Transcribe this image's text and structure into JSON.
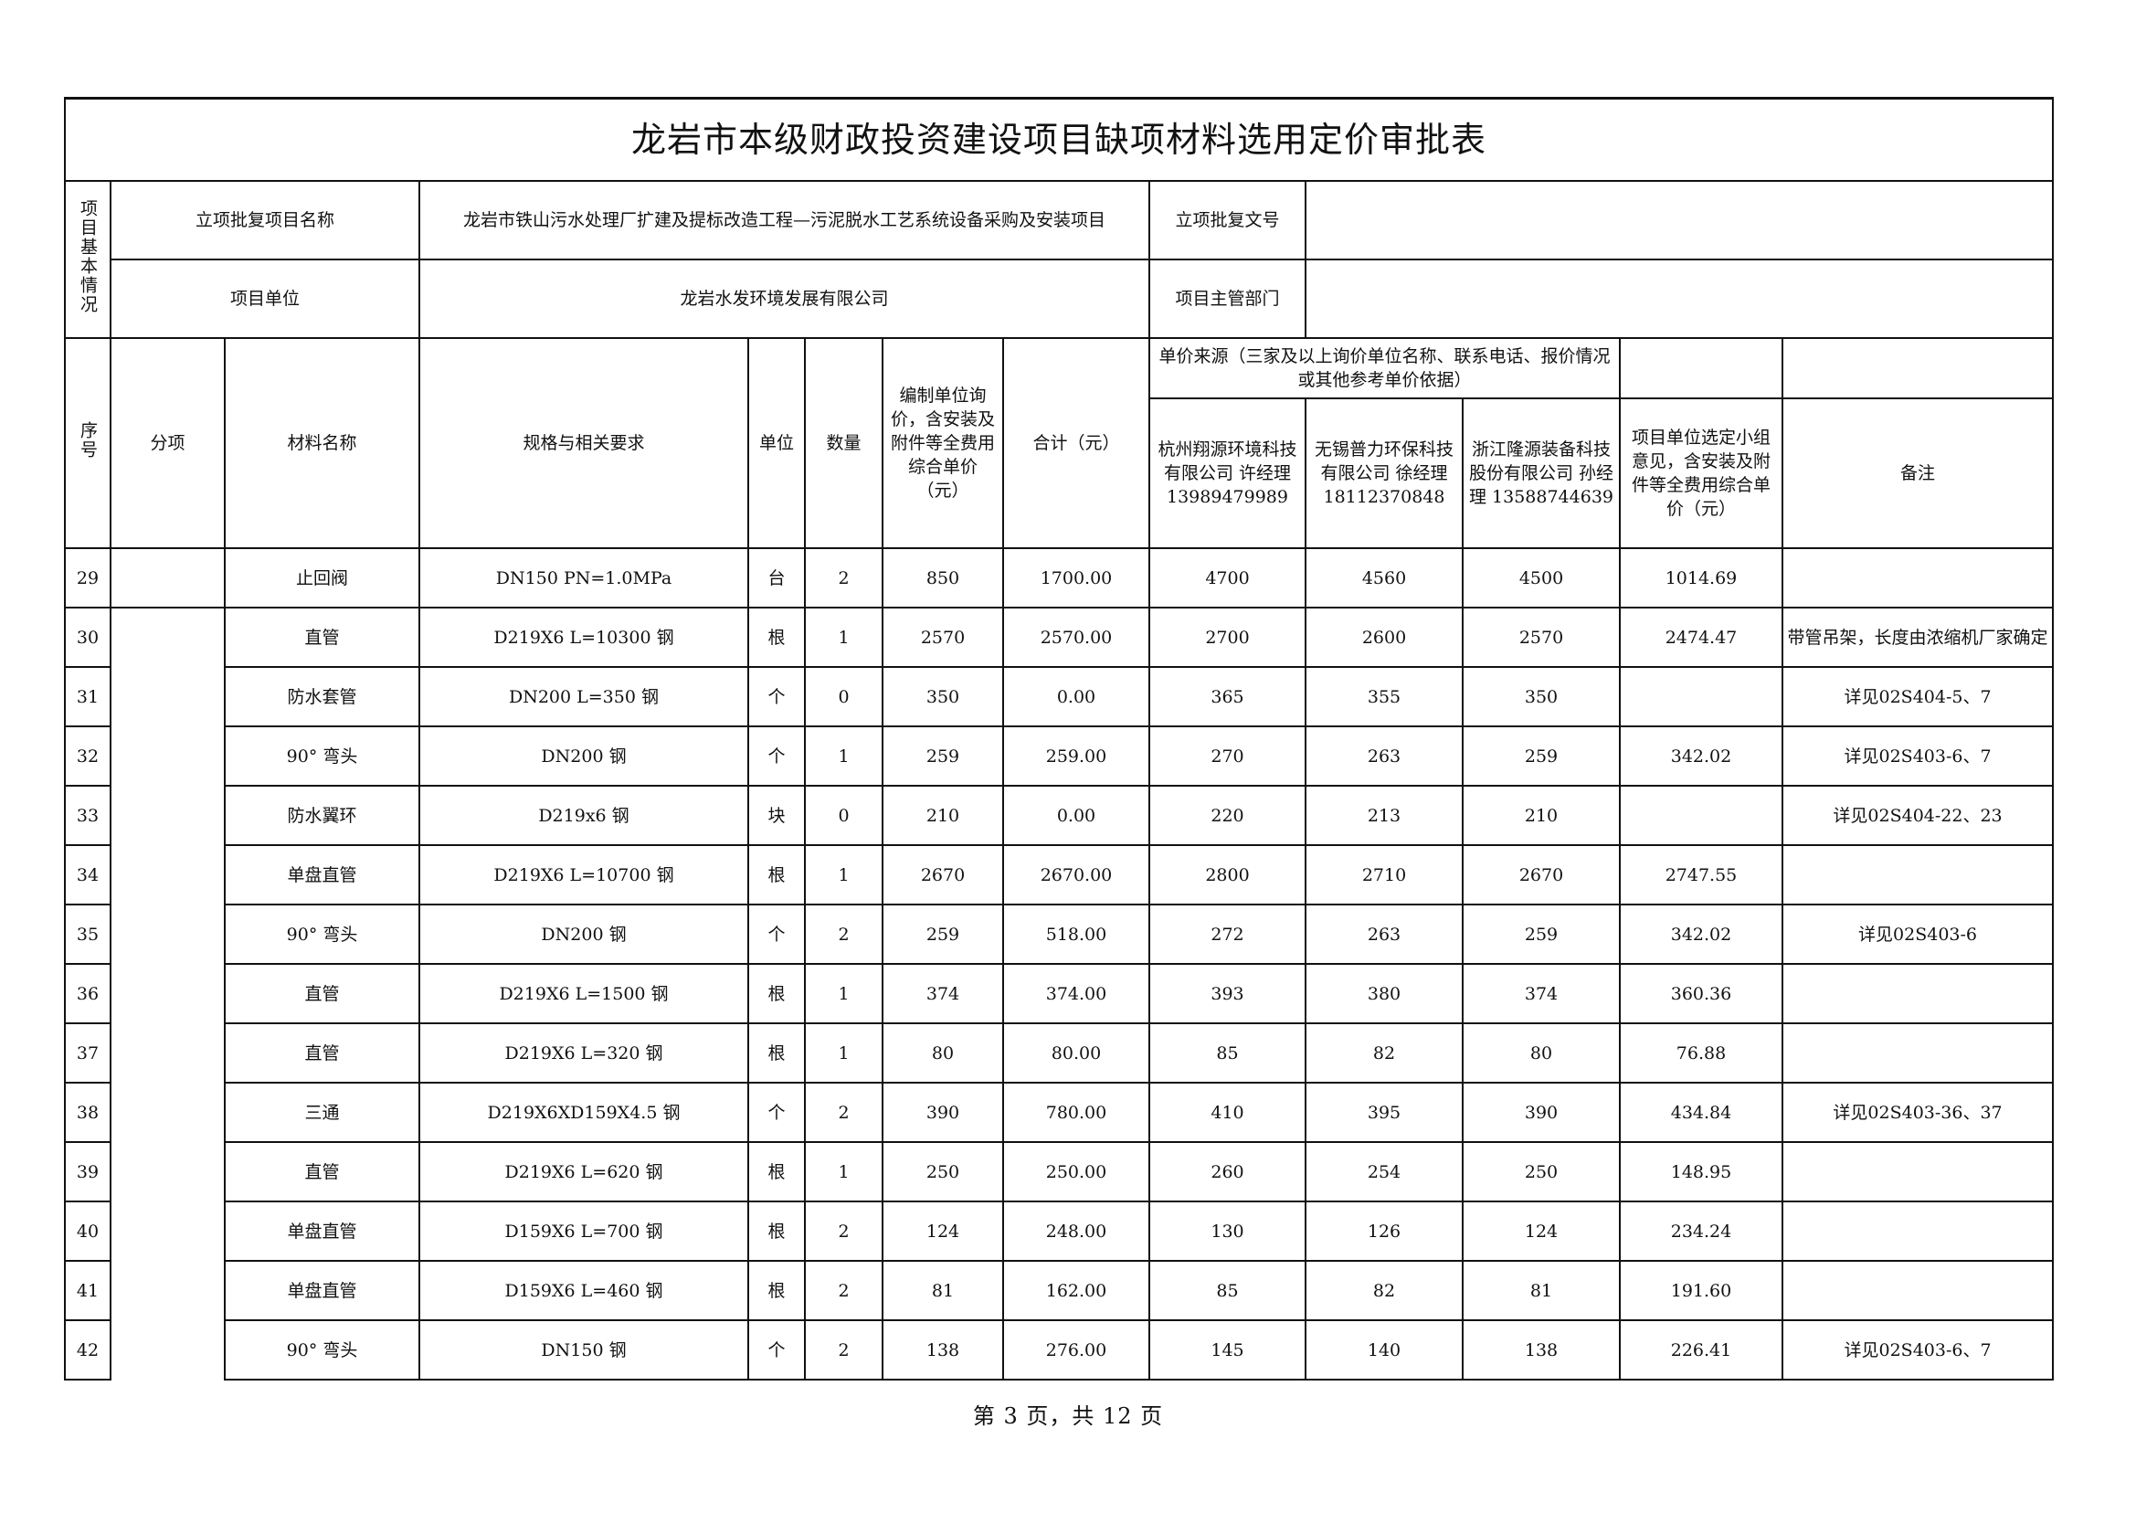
{
  "title": "龙岩市本级财政投资建设项目缺项材料选用定价审批表",
  "basic": {
    "section_label": "项目基本情况",
    "project_name_label": "立项批复项目名称",
    "project_name": "龙岩市铁山污水处理厂扩建及提标改造工程—污泥脱水工艺系统设备采购及安装项目",
    "approval_no_label": "立项批复文号",
    "approval_no": "",
    "unit_label": "项目单位",
    "unit": "龙岩水发环境发展有限公司",
    "dept_label": "项目主管部门",
    "dept": ""
  },
  "headers": {
    "seq": "序号",
    "sub_item": "分项",
    "material": "材料名称",
    "spec": "规格与相关要求",
    "unit": "单位",
    "qty": "数量",
    "compiled_price": "编制单位询价，含安装及附件等全费用综合单价（元）",
    "total": "合计（元）",
    "price_source": "单价来源（三家及以上询价单位名称、联系电话、报价情况或其他参考单价依据）",
    "vendor1": "杭州翔源环境科技有限公司 许经理 13989479989",
    "vendor2": "无锡普力环保科技有限公司 徐经理 18112370848",
    "vendor3": "浙江隆源装备科技股份有限公司 孙经理 13588744639",
    "selected_price": "项目单位选定小组意见，含安装及附件等全费用综合单价（元）",
    "remark": "备注"
  },
  "rows": [
    {
      "seq": "29",
      "material": "止回阀",
      "spec": "DN150 PN=1.0MPa",
      "unit": "台",
      "qty": "2",
      "price": "850",
      "total": "1700.00",
      "v1": "4700",
      "v2": "4560",
      "v3": "4500",
      "selected": "1014.69",
      "remark": ""
    },
    {
      "seq": "30",
      "material": "直管",
      "spec": "D219X6 L=10300 钢",
      "unit": "根",
      "qty": "1",
      "price": "2570",
      "total": "2570.00",
      "v1": "2700",
      "v2": "2600",
      "v3": "2570",
      "selected": "2474.47",
      "remark": "带管吊架，长度由浓缩机厂家确定"
    },
    {
      "seq": "31",
      "material": "防水套管",
      "spec": "DN200 L=350 钢",
      "unit": "个",
      "qty": "0",
      "price": "350",
      "total": "0.00",
      "v1": "365",
      "v2": "355",
      "v3": "350",
      "selected": "",
      "remark": "详见02S404-5、7"
    },
    {
      "seq": "32",
      "material": "90° 弯头",
      "spec": "DN200 钢",
      "unit": "个",
      "qty": "1",
      "price": "259",
      "total": "259.00",
      "v1": "270",
      "v2": "263",
      "v3": "259",
      "selected": "342.02",
      "remark": "详见02S403-6、7"
    },
    {
      "seq": "33",
      "material": "防水翼环",
      "spec": "D219x6 钢",
      "unit": "块",
      "qty": "0",
      "price": "210",
      "total": "0.00",
      "v1": "220",
      "v2": "213",
      "v3": "210",
      "selected": "",
      "remark": "详见02S404-22、23"
    },
    {
      "seq": "34",
      "material": "单盘直管",
      "spec": "D219X6 L=10700 钢",
      "unit": "根",
      "qty": "1",
      "price": "2670",
      "total": "2670.00",
      "v1": "2800",
      "v2": "2710",
      "v3": "2670",
      "selected": "2747.55",
      "remark": ""
    },
    {
      "seq": "35",
      "material": "90° 弯头",
      "spec": "DN200 钢",
      "unit": "个",
      "qty": "2",
      "price": "259",
      "total": "518.00",
      "v1": "272",
      "v2": "263",
      "v3": "259",
      "selected": "342.02",
      "remark": "详见02S403-6"
    },
    {
      "seq": "36",
      "material": "直管",
      "spec": "D219X6 L=1500 钢",
      "unit": "根",
      "qty": "1",
      "price": "374",
      "total": "374.00",
      "v1": "393",
      "v2": "380",
      "v3": "374",
      "selected": "360.36",
      "remark": ""
    },
    {
      "seq": "37",
      "material": "直管",
      "spec": "D219X6 L=320 钢",
      "unit": "根",
      "qty": "1",
      "price": "80",
      "total": "80.00",
      "v1": "85",
      "v2": "82",
      "v3": "80",
      "selected": "76.88",
      "remark": ""
    },
    {
      "seq": "38",
      "material": "三通",
      "spec": "D219X6XD159X4.5 钢",
      "unit": "个",
      "qty": "2",
      "price": "390",
      "total": "780.00",
      "v1": "410",
      "v2": "395",
      "v3": "390",
      "selected": "434.84",
      "remark": "详见02S403-36、37"
    },
    {
      "seq": "39",
      "material": "直管",
      "spec": "D219X6 L=620 钢",
      "unit": "根",
      "qty": "1",
      "price": "250",
      "total": "250.00",
      "v1": "260",
      "v2": "254",
      "v3": "250",
      "selected": "148.95",
      "remark": ""
    },
    {
      "seq": "40",
      "material": "单盘直管",
      "spec": "D159X6 L=700 钢",
      "unit": "根",
      "qty": "2",
      "price": "124",
      "total": "248.00",
      "v1": "130",
      "v2": "126",
      "v3": "124",
      "selected": "234.24",
      "remark": ""
    },
    {
      "seq": "41",
      "material": "单盘直管",
      "spec": "D159X6 L=460 钢",
      "unit": "根",
      "qty": "2",
      "price": "81",
      "total": "162.00",
      "v1": "85",
      "v2": "82",
      "v3": "81",
      "selected": "191.60",
      "remark": ""
    },
    {
      "seq": "42",
      "material": "90° 弯头",
      "spec": "DN150 钢",
      "unit": "个",
      "qty": "2",
      "price": "138",
      "total": "276.00",
      "v1": "145",
      "v2": "140",
      "v3": "138",
      "selected": "226.41",
      "remark": "详见02S403-6、7"
    }
  ],
  "footer": {
    "page": "第 3 页，共 12 页"
  }
}
